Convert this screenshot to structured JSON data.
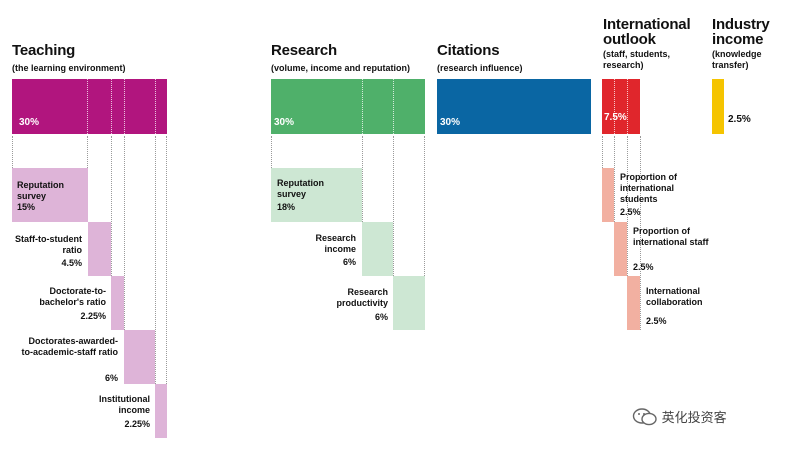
{
  "colors": {
    "teaching": "#b1157e",
    "teaching_light": "#deb4d8",
    "research": "#4fb06a",
    "research_light": "#cde7d3",
    "citations": "#0a66a3",
    "international": "#e0262c",
    "international_light": "#f2b0a1",
    "industry": "#f5c400"
  },
  "teaching": {
    "title": "Teaching",
    "subtitle": "(the learning environment)",
    "total": "30%",
    "items": [
      {
        "label": "Reputation survey",
        "value": "15%"
      },
      {
        "label": "Staff-to-student ratio",
        "value": "4.5%"
      },
      {
        "label": "Doctorate-to-bachelor's ratio",
        "value": "2.25%"
      },
      {
        "label": "Doctorates-awarded-to-academic-staff ratio",
        "value": "6%"
      },
      {
        "label": "Institutional income",
        "value": "2.25%"
      }
    ]
  },
  "research": {
    "title": "Research",
    "subtitle": "(volume, income and reputation)",
    "total": "30%",
    "items": [
      {
        "label": "Reputation survey",
        "value": "18%"
      },
      {
        "label": "Research income",
        "value": "6%"
      },
      {
        "label": "Research productivity",
        "value": "6%"
      }
    ]
  },
  "citations": {
    "title": "Citations",
    "subtitle": "(research influence)",
    "total": "30%"
  },
  "international": {
    "title": "International outlook",
    "subtitle": "(staff, students, research)",
    "total": "7.5%",
    "items": [
      {
        "label": "Proportion of international students",
        "value": "2.5%"
      },
      {
        "label": "Proportion of international staff",
        "value": "2.5%"
      },
      {
        "label": "International collaboration",
        "value": "2.5%"
      }
    ]
  },
  "industry": {
    "title": "Industry income",
    "subtitle": "(knowledge transfer)",
    "total": "2.5%"
  },
  "watermark": {
    "text": "英化投资客"
  }
}
